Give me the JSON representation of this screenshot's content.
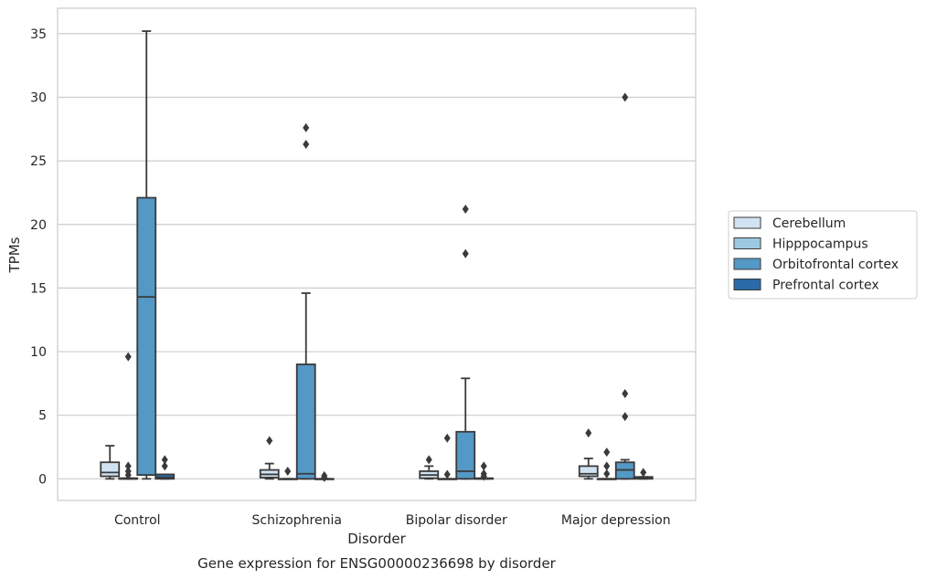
{
  "chart_data": {
    "type": "boxplot",
    "caption": "Gene expression for ENSG00000236698 by disorder",
    "xlabel": "Disorder",
    "ylabel": "TPMs",
    "ylim": [
      -1.7,
      37
    ],
    "yticks": [
      0,
      5,
      10,
      15,
      20,
      25,
      30,
      35
    ],
    "grid": "horizontal",
    "legend_placement": "right",
    "categories": [
      "Control",
      "Schizophrenia",
      "Bipolar disorder",
      "Major depression"
    ],
    "series": [
      {
        "name": "Cerebellum",
        "color": "#d1e3f2",
        "boxes": [
          {
            "q1": 0.2,
            "median": 0.5,
            "q3": 1.3,
            "whislo": 0.0,
            "whishi": 2.6,
            "fliers": []
          },
          {
            "q1": 0.1,
            "median": 0.35,
            "q3": 0.7,
            "whislo": 0.0,
            "whishi": 1.2,
            "fliers": [
              3.0
            ]
          },
          {
            "q1": 0.05,
            "median": 0.3,
            "q3": 0.6,
            "whislo": 0.0,
            "whishi": 1.0,
            "fliers": [
              1.5
            ]
          },
          {
            "q1": 0.2,
            "median": 0.4,
            "q3": 1.0,
            "whislo": 0.0,
            "whishi": 1.6,
            "fliers": [
              3.6
            ]
          }
        ]
      },
      {
        "name": "Hipppocampus",
        "color": "#9cc9e1",
        "boxes": [
          {
            "q1": 0.0,
            "median": 0.0,
            "q3": 0.05,
            "whislo": 0.0,
            "whishi": 0.05,
            "fliers": [
              0.3,
              0.6,
              1.0,
              9.6
            ]
          },
          {
            "q1": 0.0,
            "median": 0.0,
            "q3": 0.0,
            "whislo": 0.0,
            "whishi": 0.0,
            "fliers": [
              0.6
            ]
          },
          {
            "q1": 0.0,
            "median": 0.0,
            "q3": 0.0,
            "whislo": 0.0,
            "whishi": 0.0,
            "fliers": [
              0.35,
              3.2
            ]
          },
          {
            "q1": 0.0,
            "median": 0.0,
            "q3": 0.0,
            "whislo": 0.0,
            "whishi": 0.0,
            "fliers": [
              0.4,
              1.0,
              2.1
            ]
          }
        ]
      },
      {
        "name": "Orbitofrontal cortex",
        "color": "#5498c6",
        "boxes": [
          {
            "q1": 0.3,
            "median": 14.3,
            "q3": 22.1,
            "whislo": 0.0,
            "whishi": 35.2,
            "fliers": []
          },
          {
            "q1": 0.0,
            "median": 0.4,
            "q3": 9.0,
            "whislo": 0.0,
            "whishi": 14.6,
            "fliers": [
              26.3,
              27.6
            ]
          },
          {
            "q1": 0.0,
            "median": 0.6,
            "q3": 3.7,
            "whislo": 0.0,
            "whishi": 7.9,
            "fliers": [
              17.7,
              21.2
            ]
          },
          {
            "q1": 0.0,
            "median": 0.7,
            "q3": 1.3,
            "whislo": 0.0,
            "whishi": 1.5,
            "fliers": [
              4.9,
              6.7,
              30.0
            ]
          }
        ]
      },
      {
        "name": "Prefrontal cortex",
        "color": "#2a6aa8",
        "boxes": [
          {
            "q1": 0.0,
            "median": 0.1,
            "q3": 0.35,
            "whislo": 0.0,
            "whishi": 0.35,
            "fliers": [
              1.0,
              1.5
            ]
          },
          {
            "q1": 0.0,
            "median": 0.0,
            "q3": 0.0,
            "whislo": 0.0,
            "whishi": 0.0,
            "fliers": [
              0.1,
              0.25
            ]
          },
          {
            "q1": 0.0,
            "median": 0.0,
            "q3": 0.05,
            "whislo": 0.0,
            "whishi": 0.05,
            "fliers": [
              0.2,
              0.4,
              1.0
            ]
          },
          {
            "q1": 0.0,
            "median": 0.05,
            "q3": 0.15,
            "whislo": 0.0,
            "whishi": 0.15,
            "fliers": [
              0.5
            ]
          }
        ]
      }
    ]
  }
}
